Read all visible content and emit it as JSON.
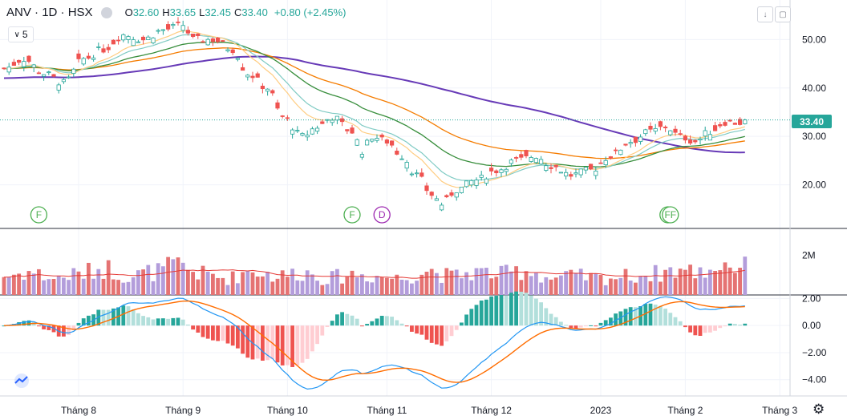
{
  "header": {
    "symbol": "ANV",
    "interval": "1D",
    "exchange": "HSX",
    "open_label": "O",
    "open": "32.60",
    "high_label": "H",
    "high": "33.65",
    "low_label": "L",
    "low": "32.45",
    "close_label": "C",
    "close": "33.40",
    "change": "+0.80 (+2.45%)",
    "indicator_count": "5"
  },
  "colors": {
    "up": "#26a69a",
    "down": "#ef5350",
    "ma_purple": "#673ab7",
    "ma_orange": "#f57c00",
    "ma_green": "#388e3c",
    "ma_teal": "#80cbc4",
    "ma_light_orange": "#ffcc80",
    "macd_line": "#2196f3",
    "signal_line": "#ff6d00"
  },
  "icons": {
    "down_arrow": "down-arrow-icon",
    "fullscreen": "fullscreen-icon",
    "settings": "gear-icon",
    "logo": "tradingview-logo-icon"
  },
  "chart_data": {
    "type": "candlestick",
    "price_axis": {
      "ticks": [
        20,
        30,
        40,
        50
      ],
      "range": [
        11.0,
        57.5
      ]
    },
    "last_price_label": "33.40",
    "volume_axis": {
      "ticks": [
        "2M"
      ],
      "tick_values": [
        2000000
      ],
      "range": [
        0,
        3300000
      ]
    },
    "macd_axis": {
      "ticks": [
        2,
        0,
        -2,
        -4
      ],
      "tick_labels": [
        "2.00",
        "0.00",
        "−2.00",
        "−4.00"
      ],
      "range": [
        -5.2,
        2.2
      ]
    },
    "x_labels": [
      {
        "text": "Tháng 8",
        "pos": 15
      },
      {
        "text": "Tháng 9",
        "pos": 36
      },
      {
        "text": "Tháng 10",
        "pos": 57
      },
      {
        "text": "Tháng 11",
        "pos": 77
      },
      {
        "text": "Tháng 12",
        "pos": 98
      },
      {
        "text": "2023",
        "pos": 120
      },
      {
        "text": "Tháng 2",
        "pos": 137
      },
      {
        "text": "Tháng 3",
        "pos": 156
      }
    ],
    "events": [
      {
        "label": "F",
        "pos": 7,
        "type": "F"
      },
      {
        "label": "F",
        "pos": 70,
        "type": "F"
      },
      {
        "label": "D",
        "pos": 76,
        "type": "D"
      },
      {
        "label": "FF",
        "pos": 134,
        "type": "F"
      }
    ],
    "close_knots": [
      [
        0,
        44
      ],
      [
        4,
        46
      ],
      [
        8,
        43
      ],
      [
        12,
        41
      ],
      [
        16,
        46
      ],
      [
        20,
        48
      ],
      [
        24,
        51
      ],
      [
        28,
        50
      ],
      [
        32,
        52
      ],
      [
        36,
        53
      ],
      [
        38,
        50
      ],
      [
        42,
        50
      ],
      [
        46,
        48
      ],
      [
        49,
        43
      ],
      [
        53,
        40
      ],
      [
        56,
        34
      ],
      [
        60,
        30
      ],
      [
        63,
        32
      ],
      [
        66,
        34
      ],
      [
        70,
        31
      ],
      [
        72,
        27
      ],
      [
        74,
        30
      ],
      [
        77,
        29
      ],
      [
        80,
        26
      ],
      [
        83,
        22
      ],
      [
        86,
        18
      ],
      [
        88,
        16
      ],
      [
        91,
        19
      ],
      [
        95,
        21
      ],
      [
        99,
        23
      ],
      [
        103,
        25
      ],
      [
        107,
        26
      ],
      [
        110,
        24
      ],
      [
        114,
        22
      ],
      [
        118,
        23
      ],
      [
        122,
        26
      ],
      [
        126,
        29
      ],
      [
        130,
        31
      ],
      [
        133,
        32
      ],
      [
        136,
        30
      ],
      [
        139,
        29
      ],
      [
        142,
        31
      ],
      [
        145,
        33
      ],
      [
        148,
        32.8
      ],
      [
        149,
        33.4
      ]
    ],
    "volume_knots": [
      [
        0,
        0.9
      ],
      [
        5,
        1.1
      ],
      [
        10,
        0.8
      ],
      [
        15,
        1.0
      ],
      [
        20,
        1.3
      ],
      [
        25,
        0.9
      ],
      [
        30,
        1.1
      ],
      [
        35,
        1.4
      ],
      [
        40,
        1.0
      ],
      [
        45,
        0.8
      ],
      [
        50,
        1.2
      ],
      [
        55,
        0.9
      ],
      [
        60,
        1.1
      ],
      [
        65,
        0.8
      ],
      [
        70,
        1.0
      ],
      [
        75,
        0.9
      ],
      [
        80,
        0.8
      ],
      [
        85,
        1.2
      ],
      [
        90,
        0.9
      ],
      [
        95,
        1.1
      ],
      [
        100,
        1.0
      ],
      [
        105,
        1.2
      ],
      [
        110,
        0.8
      ],
      [
        115,
        0.9
      ],
      [
        120,
        0.8
      ],
      [
        125,
        0.9
      ],
      [
        130,
        1.0
      ],
      [
        135,
        1.2
      ],
      [
        140,
        1.1
      ],
      [
        145,
        1.5
      ],
      [
        149,
        1.3
      ]
    ],
    "bars": 150,
    "series": [
      {
        "type": "ma",
        "period": 200,
        "color": "#673ab7"
      },
      {
        "type": "ma",
        "period": 50,
        "color": "#f57c00"
      },
      {
        "type": "ma",
        "period": 30,
        "color": "#388e3c"
      },
      {
        "type": "ma",
        "period": 15,
        "color": "#80cbc4"
      },
      {
        "type": "ma",
        "period": 10,
        "color": "#ffcc80"
      },
      {
        "type": "volume",
        "ma_period": 20
      },
      {
        "type": "macd",
        "fast": 12,
        "slow": 26,
        "signal": 9
      }
    ]
  }
}
